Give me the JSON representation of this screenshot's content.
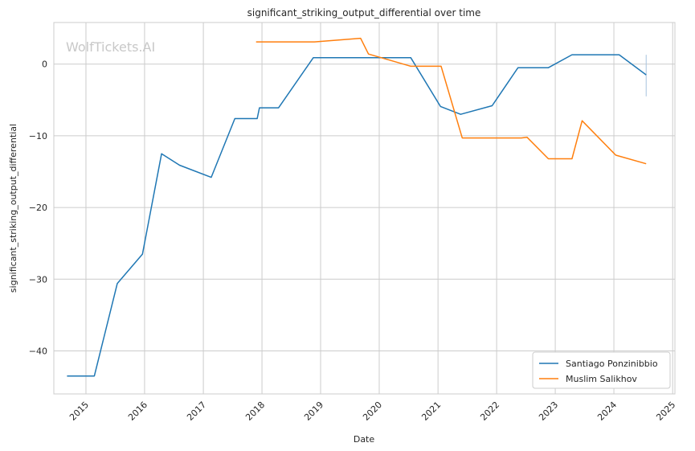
{
  "chart_data": {
    "type": "line",
    "title": "significant_striking_output_differential over time",
    "xlabel": "Date",
    "ylabel": "significant_striking_output_differential",
    "watermark": "WolfTickets.AI",
    "xlim": [
      "2014-06-15",
      "2025-01-15"
    ],
    "ylim": [
      -46,
      5.8
    ],
    "x_ticks": [
      "2015-01-01",
      "2016-01-01",
      "2017-01-01",
      "2018-01-01",
      "2019-01-01",
      "2020-01-01",
      "2021-01-01",
      "2022-01-01",
      "2023-01-01",
      "2024-01-01",
      "2025-01-01"
    ],
    "x_tick_labels": [
      "2015",
      "2016",
      "2017",
      "2018",
      "2019",
      "2020",
      "2021",
      "2022",
      "2023",
      "2024",
      "2025"
    ],
    "y_ticks": [
      0,
      -10,
      -20,
      -30,
      -40
    ],
    "y_tick_labels": [
      "0",
      "−10",
      "−20",
      "−30",
      "−40"
    ],
    "grid": true,
    "legend_position": "lower-right",
    "series": [
      {
        "name": "Santiago Ponzinibbio",
        "color": "#1f77b4",
        "x": [
          "2014-09-05",
          "2015-02-22",
          "2015-07-15",
          "2015-12-19",
          "2016-04-16",
          "2016-08-06",
          "2017-02-19",
          "2017-07-16",
          "2017-12-02",
          "2017-12-16",
          "2018-04-14",
          "2018-11-17",
          "2019-08-03",
          "2020-07-15",
          "2021-01-16",
          "2021-05-22",
          "2021-12-04",
          "2022-05-14",
          "2022-11-19",
          "2023-04-15",
          "2024-02-03",
          "2024-07-20"
        ],
        "y": [
          -43.5,
          -43.5,
          -30.6,
          -26.5,
          -12.5,
          -14.1,
          -15.8,
          -7.6,
          -7.6,
          -6.1,
          -6.1,
          0.9,
          0.9,
          0.9,
          -5.9,
          -7.0,
          -5.8,
          -0.5,
          -0.5,
          1.3,
          1.3,
          -1.5
        ]
      },
      {
        "name": "Muslim Salikhov",
        "color": "#ff7f0e",
        "x": [
          "2017-11-25",
          "2018-11-24",
          "2019-09-07",
          "2019-10-26",
          "2020-07-15",
          "2021-01-20",
          "2021-06-01",
          "2022-06-04",
          "2022-07-09",
          "2022-11-19",
          "2023-04-15",
          "2023-06-17",
          "2024-01-13",
          "2024-07-20"
        ],
        "y": [
          3.1,
          3.1,
          3.6,
          1.4,
          -0.3,
          -0.3,
          -10.3,
          -10.3,
          -10.2,
          -13.2,
          -13.2,
          -7.9,
          -12.7,
          -13.9
        ]
      }
    ],
    "error_bar": {
      "x": "2024-07-20",
      "y_low": -4.5,
      "y_high": 1.3
    }
  }
}
